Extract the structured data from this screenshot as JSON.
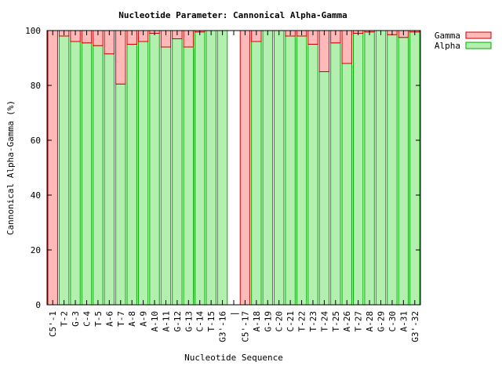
{
  "chart_data": {
    "type": "bar",
    "stacked": true,
    "title": "Nucleotide Parameter: Cannonical Alpha-Gamma",
    "xlabel": "Nucleotide Sequence",
    "ylabel": "Cannonical Alpha-Gamma (%)",
    "ylim": [
      0,
      100
    ],
    "yticks": [
      0,
      20,
      40,
      60,
      80,
      100
    ],
    "grid": false,
    "legend_position": "top-right",
    "categories": [
      "C5'-1",
      "T-2",
      "G-3",
      "C-4",
      "T-5",
      "A-6",
      "T-7",
      "A-8",
      "A-9",
      "A-10",
      "A-11",
      "G-12",
      "G-13",
      "C-14",
      "T-15",
      "G3'-16",
      "|",
      "C5'-17",
      "A-18",
      "G-19",
      "C-20",
      "C-21",
      "T-22",
      "T-23",
      "T-24",
      "T-25",
      "A-26",
      "T-27",
      "A-28",
      "G-29",
      "C-30",
      "A-31",
      "G3'-32"
    ],
    "series": [
      {
        "name": "Alpha",
        "color": "#b3f0b0",
        "stroke": "#00aa00",
        "values": [
          0,
          98,
          96,
          95.5,
          94.5,
          91.5,
          80.5,
          95,
          96,
          99,
          94,
          97,
          94,
          99.5,
          100,
          100,
          null,
          0,
          96,
          100,
          100,
          98,
          98,
          95,
          85,
          95.5,
          88,
          99,
          99.5,
          100,
          98.5,
          97.5,
          99.5
        ]
      },
      {
        "name": "Gamma",
        "color": "#ffb9b9",
        "stroke": "#cc0000",
        "values": [
          100,
          2,
          4,
          4.5,
          5.5,
          8.5,
          19.5,
          5,
          4,
          1,
          6,
          3,
          6,
          0.5,
          0,
          0,
          null,
          100,
          4,
          0,
          0,
          2,
          2,
          5,
          15,
          4.5,
          12,
          1,
          0.5,
          0,
          1.5,
          2.5,
          0.5
        ]
      }
    ]
  }
}
